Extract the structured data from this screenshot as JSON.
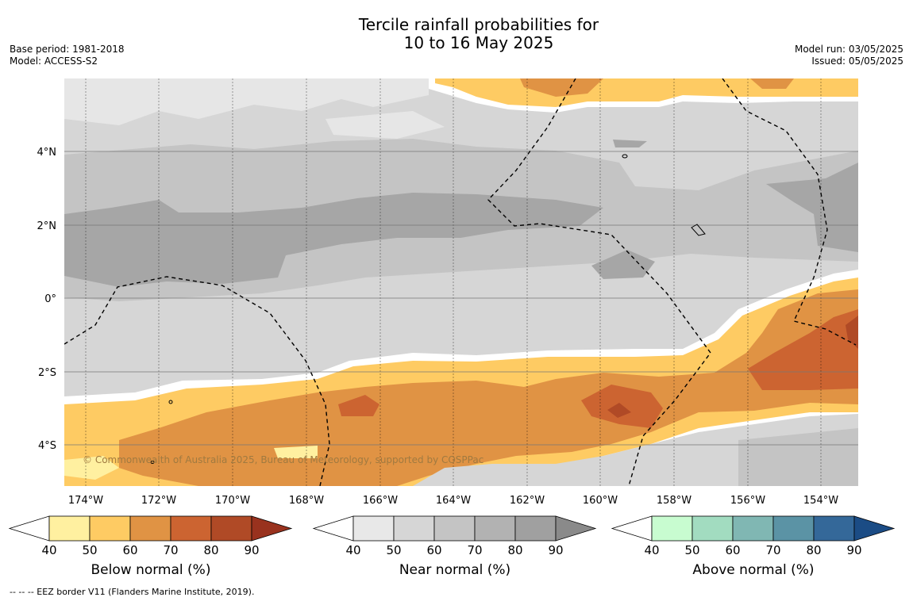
{
  "title_line1": "Tercile rainfall probabilities for",
  "title_line2": "10 to 16 May 2025",
  "meta_left": [
    "Base period: 1981-2018",
    "Model: ACCESS-S2"
  ],
  "meta_right": [
    "Model run: 03/05/2025",
    "Issued: 05/05/2025"
  ],
  "copyright": "© Commonwealth of Australia 2025, Bureau of Meteorology, supported by COSPPac",
  "lon_ticks": [
    "174°W",
    "172°W",
    "170°W",
    "168°W",
    "166°W",
    "164°W",
    "162°W",
    "160°W",
    "158°W",
    "156°W",
    "154°W"
  ],
  "lat_ticks": [
    "4°N",
    "2°N",
    "0°",
    "2°S",
    "4°S"
  ],
  "colorbars": [
    {
      "title": "Below normal (%)",
      "colors": [
        "#ffffff",
        "#fff0a0",
        "#fecb63",
        "#e09344",
        "#cc6431",
        "#b04a26",
        "#99321e"
      ]
    },
    {
      "title": "Near normal (%)",
      "colors": [
        "#ffffff",
        "#e8e8e8",
        "#d6d6d6",
        "#c4c4c4",
        "#b2b2b2",
        "#a0a0a0",
        "#8a8a8a"
      ]
    },
    {
      "title": "Above normal (%)",
      "colors": [
        "#ffffff",
        "#c8fcd0",
        "#a2dcc0",
        "#80b7b3",
        "#5b93a5",
        "#346899",
        "#1b4c85"
      ]
    }
  ],
  "colorbar_ticks": [
    "40",
    "50",
    "60",
    "70",
    "80",
    "90"
  ],
  "footnote": "--  --  -- EEZ border V11 (Flanders Marine Institute, 2019)."
}
